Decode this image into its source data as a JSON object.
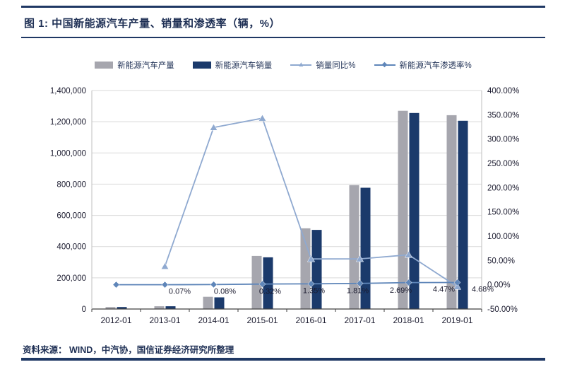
{
  "title": "图 1:  中国新能源汽车产量、销量和渗透率（辆，%）",
  "source": "资料来源：  WIND，中汽协，国信证券经济研究所整理",
  "theme": {
    "accent": "#1f3864",
    "ink": "#1f3055",
    "tick_text": "#1a1a2e",
    "gridline": "#d9d9d9"
  },
  "chart_data": {
    "type": "bar",
    "subtype": "combo-bar-line-dual-axis",
    "categories": [
      "2012-01",
      "2013-01",
      "2014-01",
      "2015-01",
      "2016-01",
      "2017-01",
      "2018-01",
      "2019-01"
    ],
    "series": [
      {
        "name": "新能源汽车产量",
        "type": "bar",
        "axis": "left",
        "color": "#a6a6ae",
        "values": [
          12552,
          17533,
          78499,
          340471,
          517000,
          794000,
          1270000,
          1242000
        ]
      },
      {
        "name": "新能源汽车销量",
        "type": "bar",
        "axis": "left",
        "color": "#1b3a6b",
        "values": [
          12791,
          17642,
          74763,
          331092,
          507000,
          777000,
          1256000,
          1206000
        ]
      },
      {
        "name": "销量同比%",
        "type": "line",
        "marker": "triangle",
        "axis": "right",
        "color": "#8fa9d0",
        "values": [
          null,
          37.9,
          323.8,
          342.9,
          53.1,
          53.3,
          61.7,
          -4.0
        ]
      },
      {
        "name": "新能源汽车渗透率%",
        "type": "line",
        "marker": "diamond",
        "axis": "right",
        "color": "#5f86b9",
        "values": [
          0.07,
          0.08,
          0.32,
          1.35,
          1.81,
          2.69,
          4.47,
          4.68
        ],
        "labels": [
          "0.07%",
          "0.08%",
          "0.32%",
          "1.35%",
          "1.81%",
          "2.69%",
          "4.47%",
          "4.68%"
        ]
      }
    ],
    "left_axis": {
      "min": 0,
      "max": 1400000,
      "step": 200000,
      "tick_labels": [
        "0",
        "200,000",
        "400,000",
        "600,000",
        "800,000",
        "1,000,000",
        "1,200,000",
        "1,400,000"
      ]
    },
    "right_axis": {
      "min": -50,
      "max": 400,
      "step": 50,
      "tick_labels": [
        "-50.00%",
        "0.00%",
        "50.00%",
        "100.00%",
        "150.00%",
        "200.00%",
        "250.00%",
        "300.00%",
        "350.00%",
        "400.00%"
      ]
    },
    "grid": true,
    "legend_position": "top"
  }
}
